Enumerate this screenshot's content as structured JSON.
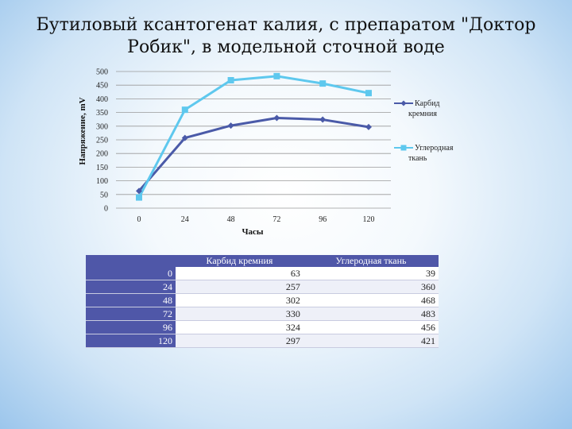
{
  "title": "Бутиловый ксантогенат калия, с препаратом \"Доктор Робик\", в модельной сточной воде",
  "chart_data": {
    "type": "line",
    "x": [
      0,
      24,
      48,
      72,
      96,
      120
    ],
    "xlabel": "Часы",
    "ylabel": "Напряжение, mV",
    "ylim": [
      0,
      500
    ],
    "yticks": [
      0,
      50,
      100,
      150,
      200,
      250,
      300,
      350,
      400,
      450,
      500
    ],
    "grid": true,
    "legend_position": "right",
    "series": [
      {
        "name": "Карбид кремния",
        "values": [
          63,
          257,
          302,
          330,
          324,
          297
        ],
        "color": "#4a5aa8",
        "marker": "diamond"
      },
      {
        "name": "Углеродная ткань",
        "values": [
          39,
          360,
          468,
          483,
          456,
          421
        ],
        "color": "#5ec8ee",
        "marker": "square"
      }
    ]
  },
  "table": {
    "headers": [
      "",
      "Карбид кремния",
      "Углеродная ткань"
    ],
    "rows": [
      [
        "0",
        "63",
        "39"
      ],
      [
        "24",
        "257",
        "360"
      ],
      [
        "48",
        "302",
        "468"
      ],
      [
        "72",
        "330",
        "483"
      ],
      [
        "96",
        "324",
        "456"
      ],
      [
        "120",
        "297",
        "421"
      ]
    ]
  }
}
